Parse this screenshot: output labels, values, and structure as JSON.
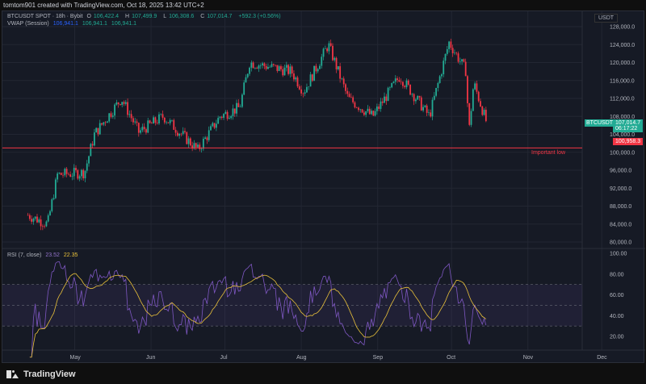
{
  "header": {
    "attribution": "tomtom901 created with TradingView.com, Oct 18, 2025 13:42 UTC+2"
  },
  "symbol": {
    "title": "BTCUSDT SPOT · 18h · Bybit",
    "open_label": "O",
    "open": "106,422.4",
    "high_label": "H",
    "high": "107,499.9",
    "low_label": "L",
    "low": "106,308.6",
    "close_label": "C",
    "close": "107,014.7",
    "change": "+592.3 (+0.56%)"
  },
  "vwap": {
    "label": "VWAP (Session)",
    "v1": "106,941.1",
    "v2": "106,941.1",
    "v3": "106,941.1"
  },
  "rsi": {
    "label": "RSI (7, close)",
    "value": "23.52",
    "ma": "22.35"
  },
  "price_axis": {
    "currency": "USDT",
    "last_symbol": "BTCUSDT",
    "last_price": "107,014.7",
    "countdown": "06:17:22",
    "level_price": "100,958.3",
    "level_label": "Important low"
  },
  "colors": {
    "up": "#22ab94",
    "down": "#f23645",
    "level": "#f23645",
    "rsi": "#7e57c2",
    "rsi_ma": "#e9c13a",
    "bg": "#161a25"
  },
  "chart_data": {
    "type": "candlestick",
    "timeframe": "18h",
    "ylim": [
      78000,
      130000
    ],
    "yticks": [
      80000,
      84000,
      88000,
      92000,
      96000,
      100000,
      104000,
      108000,
      112000,
      116000,
      120000,
      124000,
      128000
    ],
    "ytick_labels": [
      "80,000.0",
      "84,000.0",
      "88,000.0",
      "92,000.0",
      "96,000.0",
      "100,000.0",
      "104,000.0",
      "108,000.0",
      "112,000.0",
      "116,000.0",
      "120,000.0",
      "124,000.0",
      "128,000.0"
    ],
    "xticks": [
      "May",
      "Jun",
      "Jul",
      "Aug",
      "Sep",
      "Oct",
      "Nov",
      "Dec"
    ],
    "price_path_days_since_apr1": [
      [
        11,
        86000
      ],
      [
        19,
        84000
      ],
      [
        23,
        95000
      ],
      [
        34,
        95500
      ],
      [
        38,
        104000
      ],
      [
        49,
        112000
      ],
      [
        56,
        104500
      ],
      [
        66,
        108000
      ],
      [
        80,
        100500
      ],
      [
        89,
        108000
      ],
      [
        97,
        110000
      ],
      [
        101,
        120000
      ],
      [
        118,
        118000
      ],
      [
        123,
        113500
      ],
      [
        133,
        124000
      ],
      [
        141,
        112000
      ],
      [
        151,
        108000
      ],
      [
        162,
        117000
      ],
      [
        174,
        108000
      ],
      [
        182,
        124500
      ],
      [
        189,
        118000
      ],
      [
        190,
        104000
      ],
      [
        192,
        115500
      ],
      [
        197,
        107000
      ]
    ],
    "horizontal_line": 100958.3,
    "rsi_ylim": [
      10,
      100
    ],
    "rsi_yticks": [
      20,
      40,
      60,
      80,
      100
    ],
    "rsi_ytick_labels": [
      "20.00",
      "40.00",
      "60.00",
      "80.00",
      "100.00"
    ],
    "rsi_bands": [
      30,
      70
    ]
  }
}
